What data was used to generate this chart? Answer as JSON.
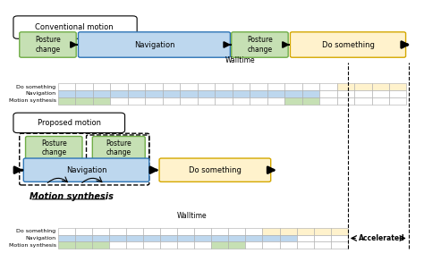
{
  "fig_width": 4.74,
  "fig_height": 3.02,
  "dpi": 100,
  "bg_color": "#ffffff",
  "conv_label": "Conventional motion",
  "prop_label": "Proposed motion",
  "motion_synth_label": "Motion synthesis",
  "green_fill": "#c6e0b4",
  "green_edge": "#70ad47",
  "blue_fill": "#bdd7ee",
  "blue_edge": "#2e75b6",
  "yellow_fill": "#fff2cc",
  "yellow_edge": "#d4a800",
  "white_fill": "#ffffff",
  "gray_edge": "#7f7f7f",
  "grid_color": "#aaaaaa"
}
